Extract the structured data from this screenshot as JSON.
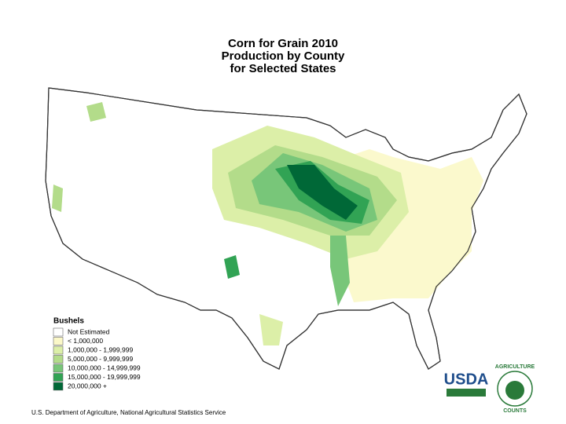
{
  "title": [
    "Corn for Grain 2010",
    "Production by County",
    "for Selected States"
  ],
  "legend": {
    "title": "Bushels",
    "items": [
      {
        "label": "Not Estimated",
        "color": "#ffffff"
      },
      {
        "label": "< 1,000,000",
        "color": "#fbf8c8"
      },
      {
        "label": "1,000,000 - 1,999,999",
        "color": "#dcefa8"
      },
      {
        "label": "5,000,000 - 9,999,999",
        "color": "#b3dc8a"
      },
      {
        "label": "10,000,000 - 14,999,999",
        "color": "#78c679"
      },
      {
        "label": "15,000,000 - 19,999,999",
        "color": "#31a354"
      },
      {
        "label": "20,000,000 +",
        "color": "#006837"
      }
    ]
  },
  "footer": "U.S. Department of Agriculture, National Agricultural Statistics Service",
  "logos": {
    "usda": "USDA",
    "ring_top": "AGRICULTURE",
    "ring_bottom": "COUNTS"
  }
}
